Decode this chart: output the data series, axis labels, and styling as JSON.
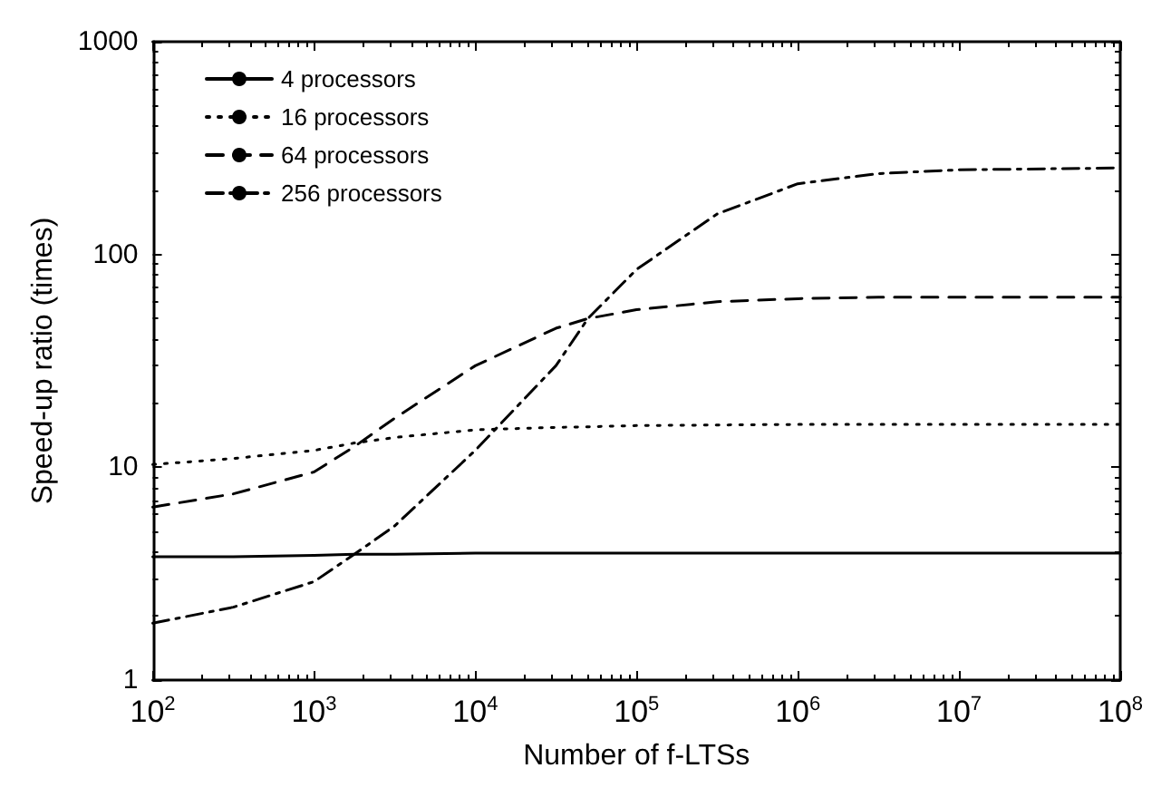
{
  "chart_data": {
    "type": "line",
    "xlabel": "Number of f-LTSs",
    "ylabel": "Speed-up ratio (times)",
    "log": "xy",
    "xlim": [
      100,
      100000000
    ],
    "ylim": [
      1,
      1000
    ],
    "xticks": [
      {
        "value": 100,
        "label": "10$^{2}$"
      },
      {
        "value": 1000,
        "label": "10$^{3}$"
      },
      {
        "value": 10000,
        "label": "10$^{4}$"
      },
      {
        "value": 100000,
        "label": "10$^{5}$"
      },
      {
        "value": 1000000,
        "label": "10$^{6}$"
      },
      {
        "value": 10000000,
        "label": "10$^{7}$"
      },
      {
        "value": 100000000,
        "label": "10$^{8}$"
      }
    ],
    "yticks": [
      1,
      10,
      100,
      1000
    ],
    "grid": false,
    "legend": "top left",
    "marker": "none",
    "x": [
      100,
      316,
      1000,
      1778,
      3162,
      10000,
      31623,
      50000,
      100000,
      316228,
      1000000,
      3162278,
      10000000,
      100000000
    ],
    "series": [
      {
        "name": "4 processors",
        "color": "#000000",
        "line_style": "solid",
        "values": [
          3.8,
          3.8,
          3.85,
          3.9,
          3.9,
          3.95,
          3.95,
          3.95,
          3.95,
          3.95,
          3.95,
          3.95,
          3.95,
          3.95
        ]
      },
      {
        "name": "16 processors",
        "color": "#000000",
        "line_style": "dotted",
        "values": [
          10.3,
          11,
          12,
          13,
          13.8,
          15,
          15.4,
          15.5,
          15.7,
          15.8,
          15.9,
          15.9,
          15.9,
          15.9
        ]
      },
      {
        "name": "64 processors",
        "color": "#000000",
        "line_style": "dashed",
        "values": [
          6.5,
          7.5,
          9.5,
          12.5,
          17,
          30,
          45,
          50,
          55,
          60,
          62,
          63,
          63,
          63
        ]
      },
      {
        "name": "256 processors",
        "color": "#000000",
        "line_style": "dashdot",
        "values": [
          1.85,
          2.2,
          2.9,
          3.9,
          5.3,
          12,
          30,
          50,
          85,
          155,
          215,
          240,
          250,
          255
        ]
      }
    ]
  }
}
